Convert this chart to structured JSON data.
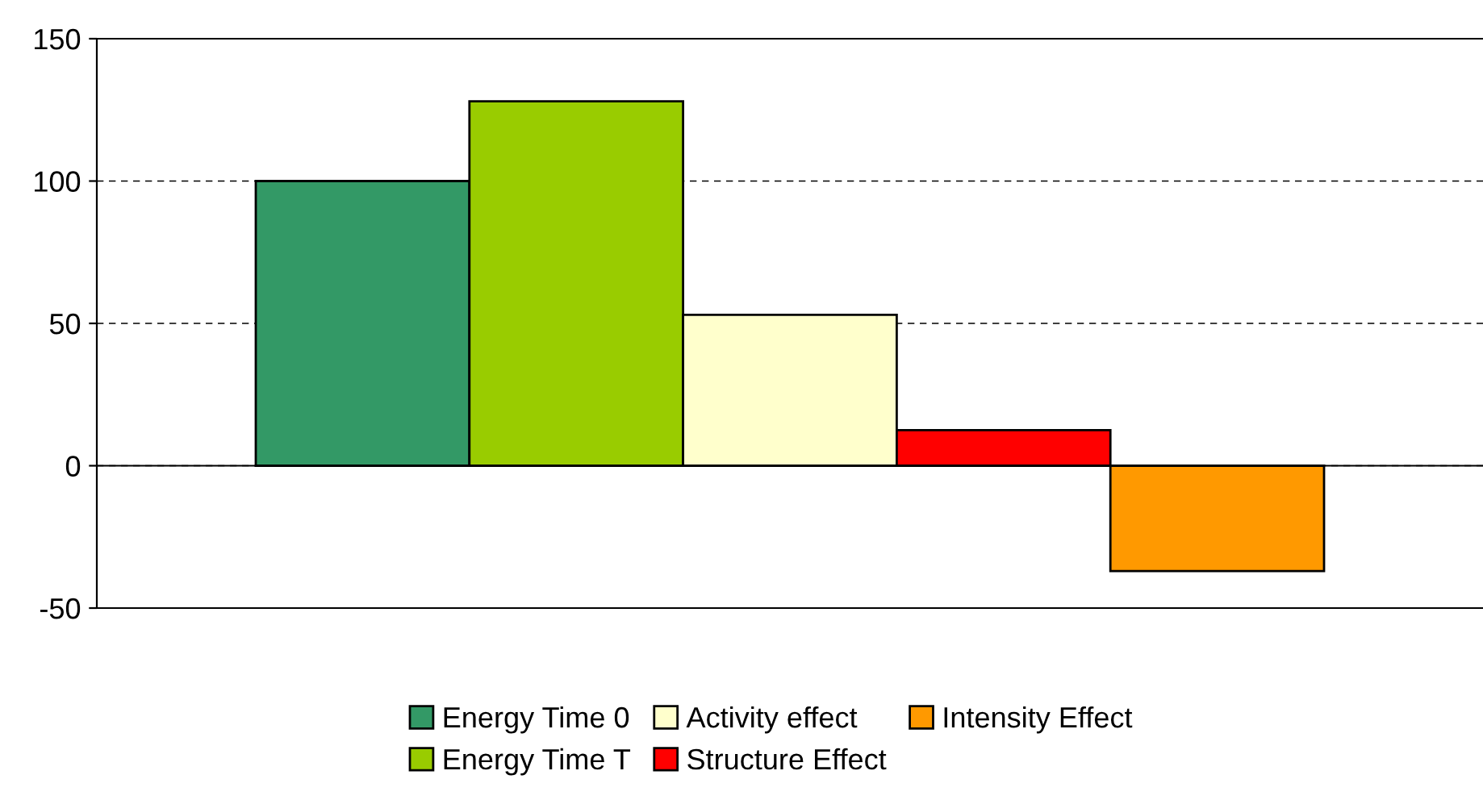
{
  "chart_data": {
    "type": "bar",
    "categories": [
      null
    ],
    "series": [
      {
        "name": "Energy Time 0",
        "color": "#339966",
        "values": [
          100
        ]
      },
      {
        "name": "Energy Time T",
        "color": "#99cc00",
        "values": [
          128
        ]
      },
      {
        "name": "Activity effect",
        "color": "#ffffcc",
        "values": [
          53
        ]
      },
      {
        "name": "Structure Effect",
        "color": "#ff0000",
        "values": [
          12.5
        ]
      },
      {
        "name": "Intensity Effect",
        "color": "#ff9900",
        "values": [
          -37
        ]
      }
    ],
    "ylim": [
      -50,
      150
    ],
    "yticks": [
      -50,
      0,
      50,
      100,
      150
    ],
    "grid": "y",
    "legend": "bottom",
    "line_style": "dashed"
  }
}
